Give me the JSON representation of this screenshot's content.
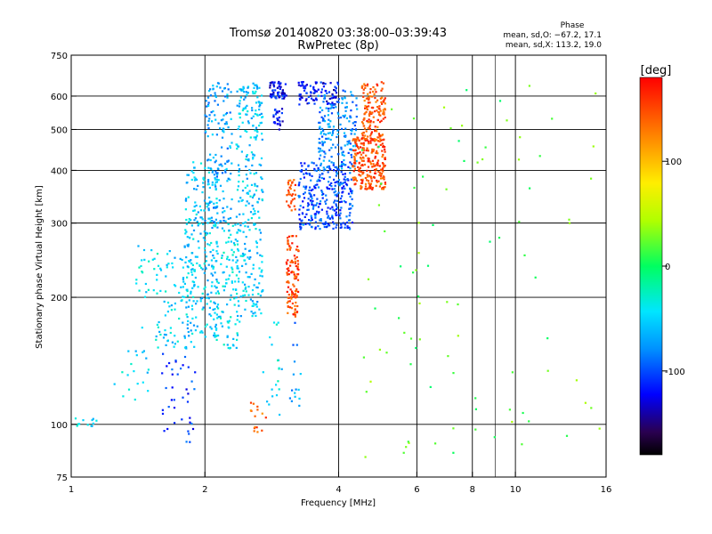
{
  "chart_data": {
    "type": "scatter",
    "title": "Tromsø 20140820 03:38:00–03:39:43",
    "subtitle": "RwPretec (8p)",
    "xlabel": "Frequency [MHz]",
    "ylabel": "Stationary phase Virtual Height [km]",
    "x_scale": "log",
    "y_scale": "log",
    "xlim": [
      1,
      16
    ],
    "ylim": [
      75,
      750
    ],
    "x_ticks": [
      1,
      2,
      4,
      6,
      8,
      10,
      16
    ],
    "y_ticks": [
      75,
      100,
      200,
      300,
      400,
      500,
      600,
      750
    ],
    "grid": true,
    "phase_legend": {
      "title": "Phase",
      "line_o": "mean, sd,O: −67.2, 17.1",
      "line_x": "mean, sd,X: 113.2, 19.0"
    },
    "colorbar": {
      "label": "[deg]",
      "range": [
        -180,
        180
      ],
      "ticks": [
        100,
        0,
        -100
      ],
      "tick_labels": [
        "100",
        "0",
        "-100"
      ]
    },
    "clusters": [
      {
        "x_range": [
          1.0,
          1.14
        ],
        "y_range": [
          98,
          104
        ],
        "phase": -45,
        "count": 12
      },
      {
        "x_range": [
          1.25,
          1.5
        ],
        "y_range": [
          110,
          170
        ],
        "phase": -45,
        "count": 20
      },
      {
        "x_range": [
          1.4,
          1.6
        ],
        "y_range": [
          200,
          270
        ],
        "phase": -45,
        "count": 25
      },
      {
        "x_range": [
          1.55,
          1.9
        ],
        "y_range": [
          150,
          260
        ],
        "phase": -50,
        "count": 90
      },
      {
        "x_range": [
          1.6,
          1.9
        ],
        "y_range": [
          90,
          150
        ],
        "phase": -105,
        "count": 40
      },
      {
        "x_range": [
          1.8,
          2.15
        ],
        "y_range": [
          160,
          420
        ],
        "phase": -55,
        "count": 230
      },
      {
        "x_range": [
          2.0,
          2.3
        ],
        "y_range": [
          300,
          650
        ],
        "phase": -70,
        "count": 150
      },
      {
        "x_range": [
          2.1,
          2.4
        ],
        "y_range": [
          150,
          300
        ],
        "phase": -45,
        "count": 120
      },
      {
        "x_range": [
          2.35,
          2.7
        ],
        "y_range": [
          180,
          650
        ],
        "phase": -55,
        "count": 280
      },
      {
        "x_range": [
          2.5,
          2.75
        ],
        "y_range": [
          95,
          115
        ],
        "phase": 140,
        "count": 15
      },
      {
        "x_range": [
          2.7,
          3.0
        ],
        "y_range": [
          100,
          180
        ],
        "phase": -45,
        "count": 20
      },
      {
        "x_range": [
          2.8,
          3.05
        ],
        "y_range": [
          590,
          650
        ],
        "phase": -120,
        "count": 60
      },
      {
        "x_range": [
          2.85,
          3.0
        ],
        "y_range": [
          500,
          560
        ],
        "phase": -120,
        "count": 25
      },
      {
        "x_range": [
          3.05,
          3.25
        ],
        "y_range": [
          180,
          280
        ],
        "phase": 150,
        "count": 110
      },
      {
        "x_range": [
          3.05,
          3.2
        ],
        "y_range": [
          320,
          380
        ],
        "phase": 145,
        "count": 30
      },
      {
        "x_range": [
          3.1,
          3.3
        ],
        "y_range": [
          110,
          180
        ],
        "phase": -75,
        "count": 15
      },
      {
        "x_range": [
          3.25,
          4.3
        ],
        "y_range": [
          290,
          420
        ],
        "phase": -100,
        "count": 300
      },
      {
        "x_range": [
          3.25,
          4.0
        ],
        "y_range": [
          570,
          650
        ],
        "phase": -120,
        "count": 90
      },
      {
        "x_range": [
          3.6,
          4.4
        ],
        "y_range": [
          400,
          620
        ],
        "phase": -80,
        "count": 180
      },
      {
        "x_range": [
          4.3,
          5.1
        ],
        "y_range": [
          360,
          480
        ],
        "phase": 150,
        "count": 240
      },
      {
        "x_range": [
          4.5,
          5.1
        ],
        "y_range": [
          470,
          650
        ],
        "phase": 145,
        "count": 140
      },
      {
        "x_range": [
          4.5,
          16.0
        ],
        "y_range": [
          80,
          650
        ],
        "phase": 20,
        "count": 90
      }
    ]
  }
}
